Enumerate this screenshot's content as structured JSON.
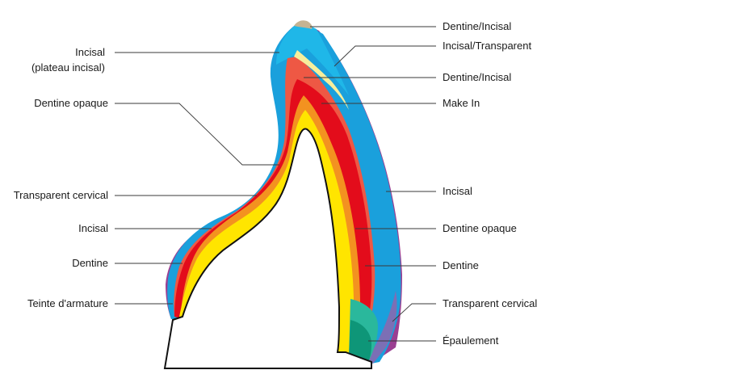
{
  "colors": {
    "incisal": "#1aa0dc",
    "incisal_light": "#1fb7e8",
    "transparent_cervical": "#9b3f92",
    "transparent_cervical_right": "#7c6fb5",
    "dentine_incisal_tip": "#c4b392",
    "make_in": "#f7ee9c",
    "dentine_incisal": "#ee5844",
    "dentine": "#e30c1b",
    "dentine_opaque": "#f39220",
    "teinte_armature": "#ffe500",
    "epaulement": "#0e9678",
    "epaulement_light": "#2ab89c",
    "die": "#ffffff"
  },
  "labels": {
    "left": {
      "incisal_plateau_line1": "Incisal",
      "incisal_plateau_line2": "(plateau incisal)",
      "dentine_opaque": "Dentine opaque",
      "transparent_cervical": "Transparent cervical",
      "incisal": "Incisal",
      "dentine": "Dentine",
      "teinte_armature": "Teinte d'armature"
    },
    "right": {
      "dentine_incisal_top": "Dentine/Incisal",
      "incisal_transparent": "Incisal/Transparent",
      "dentine_incisal": "Dentine/Incisal",
      "make_in": "Make In",
      "incisal": "Incisal",
      "dentine_opaque": "Dentine opaque",
      "dentine": "Dentine",
      "transparent_cervical": "Transparent cervical",
      "epaulement": "Épaulement"
    }
  }
}
